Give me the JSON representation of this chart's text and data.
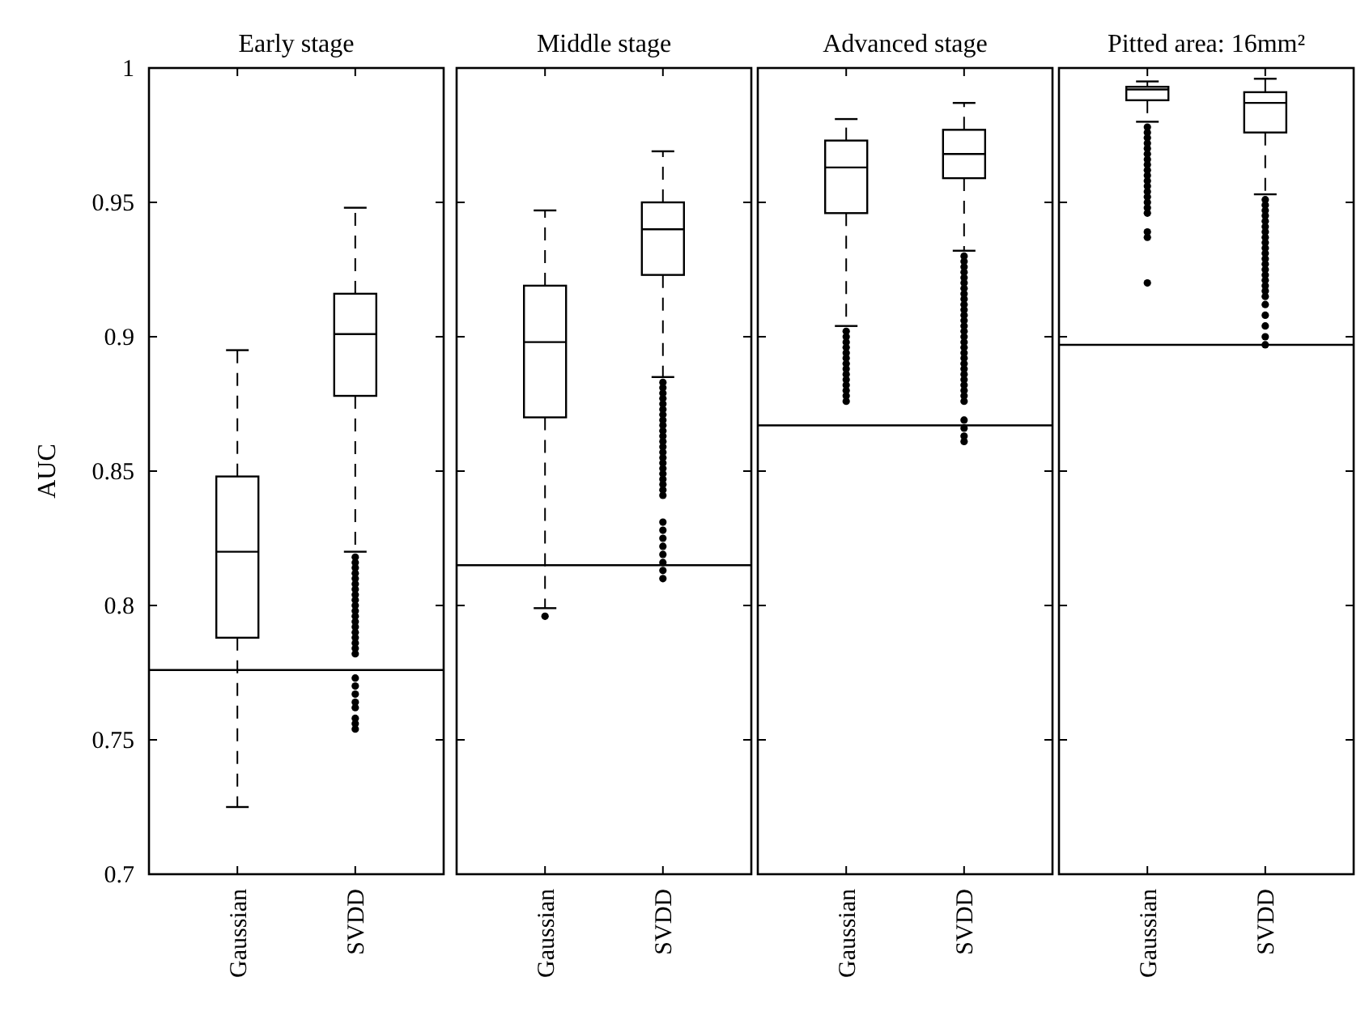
{
  "chart_data": [
    {
      "type": "box",
      "title": "Early stage",
      "ylabel": "AUC",
      "categories": [
        "Gaussian",
        "SVDD"
      ],
      "ylim": [
        0.7,
        1
      ],
      "yticks": [
        0.7,
        0.75,
        0.8,
        0.85,
        0.9,
        0.95,
        1
      ],
      "boxes": [
        {
          "low": 0.725,
          "q1": 0.788,
          "median": 0.82,
          "q3": 0.848,
          "high": 0.895
        },
        {
          "low": 0.82,
          "q1": 0.878,
          "median": 0.901,
          "q3": 0.916,
          "high": 0.948,
          "outliers": [
            0.818,
            0.816,
            0.814,
            0.812,
            0.81,
            0.808,
            0.806,
            0.804,
            0.802,
            0.8,
            0.798,
            0.796,
            0.794,
            0.792,
            0.79,
            0.788,
            0.786,
            0.784,
            0.782,
            0.773,
            0.77,
            0.767,
            0.764,
            0.762,
            0.758,
            0.756,
            0.754
          ]
        }
      ],
      "ref_lines": [
        {
          "axis": "y",
          "value": 0.776
        }
      ]
    },
    {
      "type": "box",
      "title": "Middle stage",
      "categories": [
        "Gaussian",
        "SVDD"
      ],
      "ylim": [
        0.7,
        1
      ],
      "yticks": [
        0.7,
        0.75,
        0.8,
        0.85,
        0.9,
        0.95,
        1
      ],
      "tick_labels": "x",
      "boxes": [
        {
          "low": 0.799,
          "q1": 0.87,
          "median": 0.898,
          "q3": 0.919,
          "high": 0.947,
          "outliers": [
            0.796
          ]
        },
        {
          "low": 0.885,
          "q1": 0.923,
          "median": 0.94,
          "q3": 0.95,
          "high": 0.969,
          "outliers": [
            0.883,
            0.881,
            0.879,
            0.877,
            0.875,
            0.873,
            0.871,
            0.869,
            0.867,
            0.865,
            0.863,
            0.861,
            0.859,
            0.857,
            0.855,
            0.853,
            0.851,
            0.849,
            0.847,
            0.845,
            0.843,
            0.841,
            0.831,
            0.828,
            0.825,
            0.822,
            0.819,
            0.816,
            0.813,
            0.81
          ]
        }
      ],
      "ref_lines": [
        {
          "axis": "y",
          "value": 0.815
        }
      ]
    },
    {
      "type": "box",
      "title": "Advanced stage",
      "categories": [
        "Gaussian",
        "SVDD"
      ],
      "ylim": [
        0.7,
        1
      ],
      "yticks": [
        0.7,
        0.75,
        0.8,
        0.85,
        0.9,
        0.95,
        1
      ],
      "tick_labels": "x",
      "boxes": [
        {
          "low": 0.904,
          "q1": 0.946,
          "median": 0.963,
          "q3": 0.973,
          "high": 0.981,
          "outliers": [
            0.902,
            0.9,
            0.898,
            0.896,
            0.894,
            0.892,
            0.89,
            0.888,
            0.886,
            0.884,
            0.882,
            0.88,
            0.878,
            0.876
          ]
        },
        {
          "low": 0.932,
          "q1": 0.959,
          "median": 0.968,
          "q3": 0.977,
          "high": 0.987,
          "outliers": [
            0.93,
            0.928,
            0.926,
            0.924,
            0.922,
            0.92,
            0.918,
            0.916,
            0.914,
            0.912,
            0.91,
            0.908,
            0.906,
            0.904,
            0.902,
            0.9,
            0.898,
            0.896,
            0.894,
            0.892,
            0.89,
            0.888,
            0.886,
            0.884,
            0.882,
            0.88,
            0.878,
            0.876,
            0.869,
            0.866,
            0.863,
            0.861
          ]
        }
      ],
      "ref_lines": [
        {
          "axis": "y",
          "value": 0.867
        }
      ]
    },
    {
      "type": "box",
      "title": "Pitted area: 16mm²",
      "categories": [
        "Gaussian",
        "SVDD"
      ],
      "ylim": [
        0.7,
        1
      ],
      "yticks": [
        0.7,
        0.75,
        0.8,
        0.85,
        0.9,
        0.95,
        1
      ],
      "tick_labels": "x",
      "boxes": [
        {
          "low": 0.98,
          "q1": 0.988,
          "median": 0.992,
          "q3": 0.993,
          "high": 0.995,
          "outliers": [
            0.978,
            0.976,
            0.974,
            0.972,
            0.97,
            0.968,
            0.966,
            0.964,
            0.962,
            0.96,
            0.958,
            0.956,
            0.954,
            0.952,
            0.95,
            0.948,
            0.946,
            0.939,
            0.937,
            0.92
          ]
        },
        {
          "low": 0.953,
          "q1": 0.976,
          "median": 0.987,
          "q3": 0.991,
          "high": 0.996,
          "outliers": [
            0.951,
            0.949,
            0.947,
            0.945,
            0.943,
            0.941,
            0.939,
            0.937,
            0.935,
            0.933,
            0.931,
            0.929,
            0.927,
            0.925,
            0.923,
            0.921,
            0.919,
            0.917,
            0.915,
            0.912,
            0.908,
            0.904,
            0.9,
            0.897
          ]
        }
      ],
      "ref_lines": [
        {
          "axis": "y",
          "value": 0.897
        }
      ]
    }
  ]
}
